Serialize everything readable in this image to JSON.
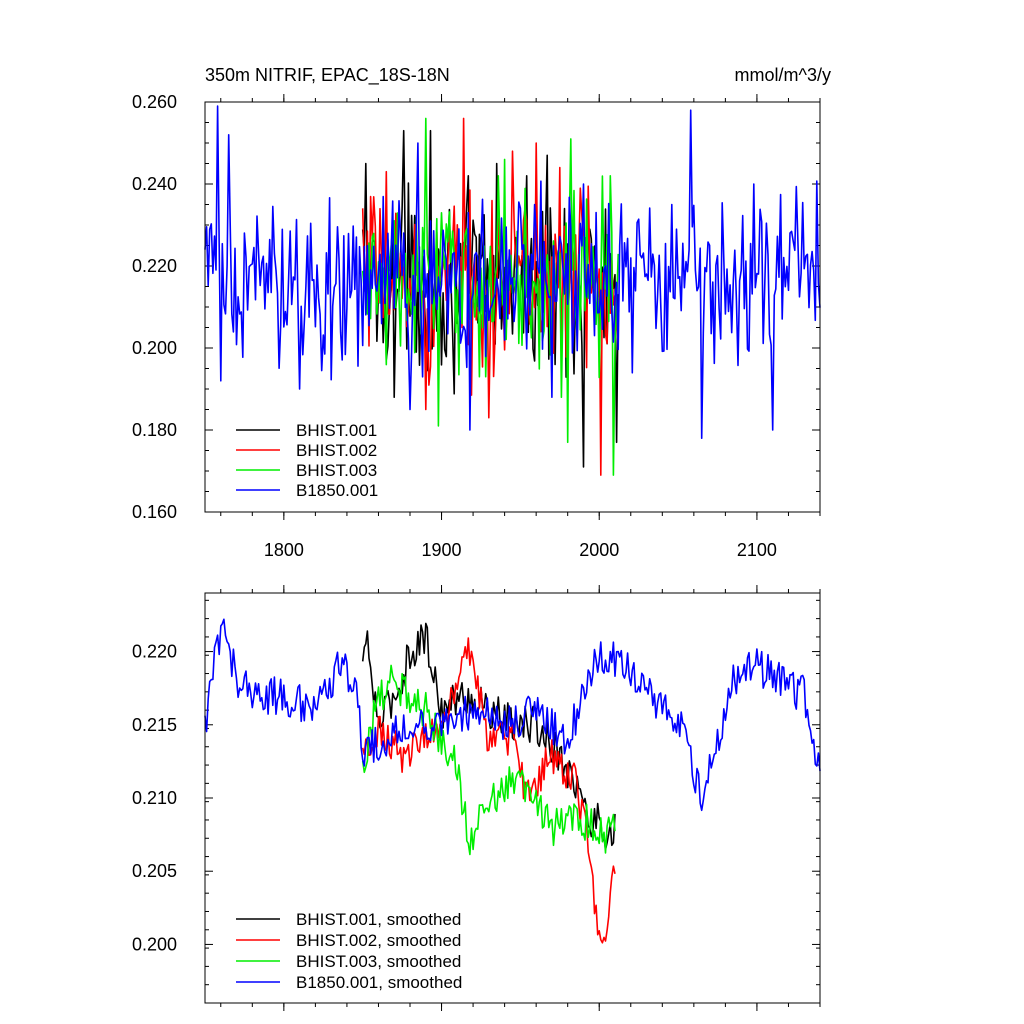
{
  "chart_data": [
    {
      "type": "line",
      "title": "350m NITRIF, EPAC_18S-18N",
      "units": "mmol/m^3/y",
      "xlim": [
        1750,
        2140
      ],
      "ylim": [
        0.16,
        0.26
      ],
      "xticks": [
        1800,
        1900,
        2000,
        2100
      ],
      "xtick_labels": [
        "1800",
        "1900",
        "2000",
        "2100"
      ],
      "yticks": [
        0.16,
        0.18,
        0.2,
        0.22,
        0.24,
        0.26
      ],
      "ytick_labels": [
        "0.160",
        "0.180",
        "0.200",
        "0.220",
        "0.240",
        "0.260"
      ],
      "legend_position": "bottom-left",
      "series": [
        {
          "name": "BHIST.001",
          "color": "#000000",
          "start": 1850,
          "end": 2012,
          "peaks": [
            [
              1852,
              0.245
            ],
            [
              1876,
              0.253
            ],
            [
              1893,
              0.253
            ],
            [
              1935,
              0.245
            ],
            [
              1967,
              0.247
            ],
            [
              1978,
              0.234
            ]
          ],
          "troughs": [
            [
              1852,
              0.187
            ],
            [
              1870,
              0.188
            ],
            [
              1990,
              0.171
            ],
            [
              2011,
              0.177
            ]
          ]
        },
        {
          "name": "BHIST.002",
          "color": "#ff0000",
          "start": 1850,
          "end": 2012,
          "peaks": [
            [
              1865,
              0.243
            ],
            [
              1914,
              0.256
            ],
            [
              1945,
              0.248
            ],
            [
              1960,
              0.25
            ],
            [
              1975,
              0.244
            ]
          ],
          "troughs": [
            [
              1890,
              0.185
            ],
            [
              1930,
              0.183
            ],
            [
              1960,
              0.183
            ],
            [
              2001,
              0.169
            ]
          ]
        },
        {
          "name": "BHIST.003",
          "color": "#00ee00",
          "start": 1850,
          "end": 2012,
          "peaks": [
            [
              1890,
              0.256
            ],
            [
              1940,
              0.246
            ],
            [
              1982,
              0.251
            ],
            [
              2007,
              0.242
            ]
          ],
          "troughs": [
            [
              1898,
              0.181
            ],
            [
              1980,
              0.177
            ],
            [
              2009,
              0.169
            ]
          ]
        },
        {
          "name": "B1850.001",
          "color": "#0000ff",
          "start": 1750,
          "end": 2140,
          "peaks": [
            [
              1758,
              0.259
            ],
            [
              1765,
              0.252
            ],
            [
              1885,
              0.25
            ],
            [
              1990,
              0.24
            ],
            [
              2058,
              0.258
            ],
            [
              2098,
              0.24
            ]
          ],
          "troughs": [
            [
              1760,
              0.192
            ],
            [
              1810,
              0.19
            ],
            [
              1880,
              0.185
            ],
            [
              1918,
              0.18
            ],
            [
              2065,
              0.178
            ],
            [
              2110,
              0.18
            ]
          ]
        }
      ]
    },
    {
      "type": "line",
      "xlim": [
        1750,
        2140
      ],
      "ylim": [
        0.196,
        0.224
      ],
      "xticks": [
        1800,
        1900,
        2000,
        2100
      ],
      "yticks": [
        0.2,
        0.205,
        0.21,
        0.215,
        0.22
      ],
      "ytick_labels": [
        "0.200",
        "0.205",
        "0.210",
        "0.215",
        "0.220"
      ],
      "legend_position": "bottom-left",
      "series": [
        {
          "name": "BHIST.001, smoothed",
          "color": "#000000",
          "start": 1850,
          "end": 2010,
          "anchors": [
            [
              1850,
              0.219
            ],
            [
              1852,
              0.221
            ],
            [
              1860,
              0.215
            ],
            [
              1875,
              0.218
            ],
            [
              1880,
              0.22
            ],
            [
              1890,
              0.221
            ],
            [
              1900,
              0.216
            ],
            [
              1915,
              0.217
            ],
            [
              1930,
              0.216
            ],
            [
              1945,
              0.215
            ],
            [
              1960,
              0.215
            ],
            [
              1975,
              0.213
            ],
            [
              1985,
              0.211
            ],
            [
              1995,
              0.208
            ],
            [
              2000,
              0.209
            ],
            [
              2005,
              0.207
            ],
            [
              2010,
              0.208
            ]
          ]
        },
        {
          "name": "BHIST.002, smoothed",
          "color": "#ff0000",
          "start": 1850,
          "end": 2010,
          "anchors": [
            [
              1850,
              0.213
            ],
            [
              1860,
              0.215
            ],
            [
              1875,
              0.213
            ],
            [
              1890,
              0.214
            ],
            [
              1905,
              0.216
            ],
            [
              1918,
              0.22
            ],
            [
              1930,
              0.214
            ],
            [
              1945,
              0.214
            ],
            [
              1955,
              0.21
            ],
            [
              1970,
              0.213
            ],
            [
              1985,
              0.211
            ],
            [
              1993,
              0.207
            ],
            [
              1998,
              0.202
            ],
            [
              2003,
              0.2005
            ],
            [
              2007,
              0.203
            ],
            [
              2010,
              0.205
            ]
          ]
        },
        {
          "name": "BHIST.003, smoothed",
          "color": "#00ee00",
          "start": 1850,
          "end": 2010,
          "anchors": [
            [
              1850,
              0.212
            ],
            [
              1860,
              0.217
            ],
            [
              1870,
              0.218
            ],
            [
              1880,
              0.217
            ],
            [
              1890,
              0.216
            ],
            [
              1900,
              0.214
            ],
            [
              1910,
              0.212
            ],
            [
              1918,
              0.207
            ],
            [
              1930,
              0.21
            ],
            [
              1945,
              0.211
            ],
            [
              1960,
              0.21
            ],
            [
              1970,
              0.208
            ],
            [
              1985,
              0.209
            ],
            [
              1995,
              0.208
            ],
            [
              2005,
              0.207
            ],
            [
              2010,
              0.209
            ]
          ]
        },
        {
          "name": "B1850.001, smoothed",
          "color": "#0000ff",
          "start": 1750,
          "end": 2140,
          "anchors": [
            [
              1750,
              0.215
            ],
            [
              1755,
              0.219
            ],
            [
              1762,
              0.222
            ],
            [
              1770,
              0.218
            ],
            [
              1785,
              0.217
            ],
            [
              1800,
              0.217
            ],
            [
              1820,
              0.216
            ],
            [
              1835,
              0.219
            ],
            [
              1845,
              0.218
            ],
            [
              1850,
              0.213
            ],
            [
              1865,
              0.214
            ],
            [
              1880,
              0.215
            ],
            [
              1900,
              0.215
            ],
            [
              1920,
              0.216
            ],
            [
              1940,
              0.215
            ],
            [
              1960,
              0.216
            ],
            [
              1980,
              0.214
            ],
            [
              1990,
              0.217
            ],
            [
              2000,
              0.22
            ],
            [
              2015,
              0.219
            ],
            [
              2030,
              0.217
            ],
            [
              2045,
              0.216
            ],
            [
              2055,
              0.214
            ],
            [
              2065,
              0.21
            ],
            [
              2075,
              0.214
            ],
            [
              2085,
              0.218
            ],
            [
              2100,
              0.219
            ],
            [
              2115,
              0.218
            ],
            [
              2130,
              0.217
            ],
            [
              2140,
              0.212
            ]
          ]
        }
      ]
    }
  ]
}
